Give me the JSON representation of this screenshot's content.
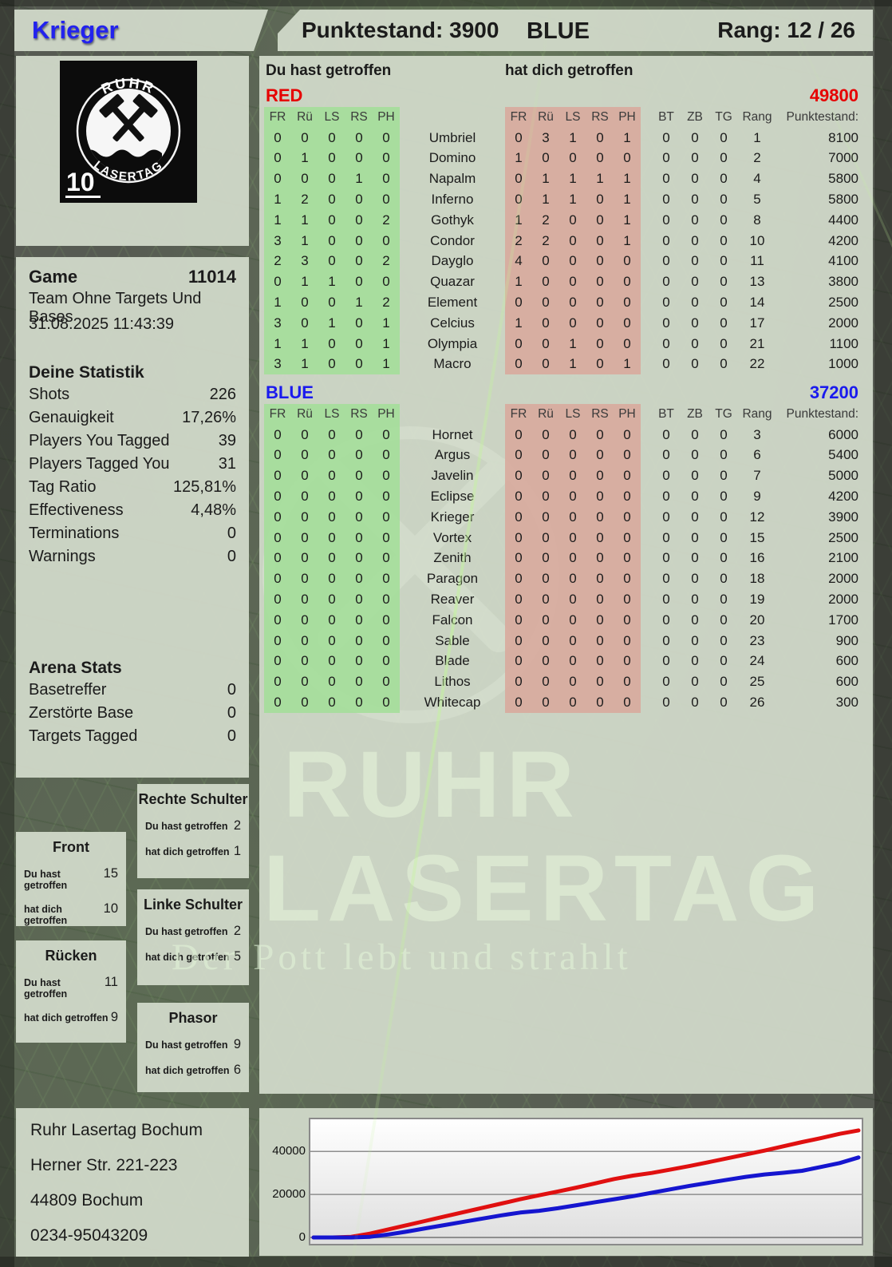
{
  "header": {
    "player_name": "Krieger",
    "score": "Punktestand: 3900",
    "team": "BLUE",
    "rank": "Rang: 12 / 26"
  },
  "logo": {
    "arc_top": "RUHR",
    "arc_bottom": "LASERTAG",
    "badge": "10"
  },
  "game": {
    "title": "Game",
    "number": "11014",
    "mode": "Team Ohne Targets Und Bases",
    "datetime": "31.08.2025 11:43:39"
  },
  "stats": {
    "title": "Deine Statistik",
    "rows": [
      {
        "label": "Shots",
        "value": "226"
      },
      {
        "label": "Genauigkeit",
        "value": "17,26%"
      },
      {
        "label": "Players You Tagged",
        "value": "39"
      },
      {
        "label": "Players Tagged You",
        "value": "31"
      },
      {
        "label": "Tag Ratio",
        "value": "125,81%"
      },
      {
        "label": "Effectiveness",
        "value": "4,48%"
      },
      {
        "label": "Terminations",
        "value": "0"
      },
      {
        "label": "Warnings",
        "value": "0"
      }
    ]
  },
  "arena": {
    "title": "Arena Stats",
    "rows": [
      {
        "label": "Basetreffer",
        "value": "0"
      },
      {
        "label": "Zerstörte Base",
        "value": "0"
      },
      {
        "label": "Targets Tagged",
        "value": "0"
      }
    ]
  },
  "zones": {
    "you_label": "Du hast getroffen",
    "them_label": "hat dich getroffen",
    "items": [
      {
        "name": "Rechte Schulter",
        "you": "2",
        "them": "1"
      },
      {
        "name": "Front",
        "you": "15",
        "them": "10"
      },
      {
        "name": "Linke Schulter",
        "you": "2",
        "them": "5"
      },
      {
        "name": "Rücken",
        "you": "11",
        "them": "9"
      },
      {
        "name": "Phasor",
        "you": "9",
        "them": "6"
      }
    ]
  },
  "address": {
    "lines": [
      "Ruhr Lasertag Bochum",
      "Herner Str. 221-223",
      "44809 Bochum",
      "0234-95043209"
    ]
  },
  "tables": {
    "you_header": "Du hast getroffen",
    "them_header": "hat dich getroffen",
    "hit_cols": [
      "FR",
      "Rü",
      "LS",
      "RS",
      "PH"
    ],
    "misc_cols": [
      "BT",
      "ZB",
      "TG",
      "Rang",
      "Punktestand:"
    ],
    "teams": [
      {
        "name": "RED",
        "color": "#e60000",
        "total": "49800",
        "rows": [
          {
            "you": [
              0,
              0,
              0,
              0,
              0
            ],
            "player": "Umbriel",
            "them": [
              0,
              3,
              1,
              0,
              1
            ],
            "bt": 0,
            "zb": 0,
            "tg": 0,
            "rang": 1,
            "punkte": 8100
          },
          {
            "you": [
              0,
              1,
              0,
              0,
              0
            ],
            "player": "Domino",
            "them": [
              1,
              0,
              0,
              0,
              0
            ],
            "bt": 0,
            "zb": 0,
            "tg": 0,
            "rang": 2,
            "punkte": 7000
          },
          {
            "you": [
              0,
              0,
              0,
              1,
              0
            ],
            "player": "Napalm",
            "them": [
              0,
              1,
              1,
              1,
              1
            ],
            "bt": 0,
            "zb": 0,
            "tg": 0,
            "rang": 4,
            "punkte": 5800
          },
          {
            "you": [
              1,
              2,
              0,
              0,
              0
            ],
            "player": "Inferno",
            "them": [
              0,
              1,
              1,
              0,
              1
            ],
            "bt": 0,
            "zb": 0,
            "tg": 0,
            "rang": 5,
            "punkte": 5800
          },
          {
            "you": [
              1,
              1,
              0,
              0,
              2
            ],
            "player": "Gothyk",
            "them": [
              1,
              2,
              0,
              0,
              1
            ],
            "bt": 0,
            "zb": 0,
            "tg": 0,
            "rang": 8,
            "punkte": 4400
          },
          {
            "you": [
              3,
              1,
              0,
              0,
              0
            ],
            "player": "Condor",
            "them": [
              2,
              2,
              0,
              0,
              1
            ],
            "bt": 0,
            "zb": 0,
            "tg": 0,
            "rang": 10,
            "punkte": 4200
          },
          {
            "you": [
              2,
              3,
              0,
              0,
              2
            ],
            "player": "Dayglo",
            "them": [
              4,
              0,
              0,
              0,
              0
            ],
            "bt": 0,
            "zb": 0,
            "tg": 0,
            "rang": 11,
            "punkte": 4100
          },
          {
            "you": [
              0,
              1,
              1,
              0,
              0
            ],
            "player": "Quazar",
            "them": [
              1,
              0,
              0,
              0,
              0
            ],
            "bt": 0,
            "zb": 0,
            "tg": 0,
            "rang": 13,
            "punkte": 3800
          },
          {
            "you": [
              1,
              0,
              0,
              1,
              2
            ],
            "player": "Element",
            "them": [
              0,
              0,
              0,
              0,
              0
            ],
            "bt": 0,
            "zb": 0,
            "tg": 0,
            "rang": 14,
            "punkte": 2500
          },
          {
            "you": [
              3,
              0,
              1,
              0,
              1
            ],
            "player": "Celcius",
            "them": [
              1,
              0,
              0,
              0,
              0
            ],
            "bt": 0,
            "zb": 0,
            "tg": 0,
            "rang": 17,
            "punkte": 2000
          },
          {
            "you": [
              1,
              1,
              0,
              0,
              1
            ],
            "player": "Olympia",
            "them": [
              0,
              0,
              1,
              0,
              0
            ],
            "bt": 0,
            "zb": 0,
            "tg": 0,
            "rang": 21,
            "punkte": 1100
          },
          {
            "you": [
              3,
              1,
              0,
              0,
              1
            ],
            "player": "Macro",
            "them": [
              0,
              0,
              1,
              0,
              1
            ],
            "bt": 0,
            "zb": 0,
            "tg": 0,
            "rang": 22,
            "punkte": 1000
          }
        ]
      },
      {
        "name": "BLUE",
        "color": "#1a1aee",
        "total": "37200",
        "rows": [
          {
            "you": [
              0,
              0,
              0,
              0,
              0
            ],
            "player": "Hornet",
            "them": [
              0,
              0,
              0,
              0,
              0
            ],
            "bt": 0,
            "zb": 0,
            "tg": 0,
            "rang": 3,
            "punkte": 6000
          },
          {
            "you": [
              0,
              0,
              0,
              0,
              0
            ],
            "player": "Argus",
            "them": [
              0,
              0,
              0,
              0,
              0
            ],
            "bt": 0,
            "zb": 0,
            "tg": 0,
            "rang": 6,
            "punkte": 5400
          },
          {
            "you": [
              0,
              0,
              0,
              0,
              0
            ],
            "player": "Javelin",
            "them": [
              0,
              0,
              0,
              0,
              0
            ],
            "bt": 0,
            "zb": 0,
            "tg": 0,
            "rang": 7,
            "punkte": 5000
          },
          {
            "you": [
              0,
              0,
              0,
              0,
              0
            ],
            "player": "Eclipse",
            "them": [
              0,
              0,
              0,
              0,
              0
            ],
            "bt": 0,
            "zb": 0,
            "tg": 0,
            "rang": 9,
            "punkte": 4200
          },
          {
            "you": [
              0,
              0,
              0,
              0,
              0
            ],
            "player": "Krieger",
            "them": [
              0,
              0,
              0,
              0,
              0
            ],
            "bt": 0,
            "zb": 0,
            "tg": 0,
            "rang": 12,
            "punkte": 3900
          },
          {
            "you": [
              0,
              0,
              0,
              0,
              0
            ],
            "player": "Vortex",
            "them": [
              0,
              0,
              0,
              0,
              0
            ],
            "bt": 0,
            "zb": 0,
            "tg": 0,
            "rang": 15,
            "punkte": 2500
          },
          {
            "you": [
              0,
              0,
              0,
              0,
              0
            ],
            "player": "Zenith",
            "them": [
              0,
              0,
              0,
              0,
              0
            ],
            "bt": 0,
            "zb": 0,
            "tg": 0,
            "rang": 16,
            "punkte": 2100
          },
          {
            "you": [
              0,
              0,
              0,
              0,
              0
            ],
            "player": "Paragon",
            "them": [
              0,
              0,
              0,
              0,
              0
            ],
            "bt": 0,
            "zb": 0,
            "tg": 0,
            "rang": 18,
            "punkte": 2000
          },
          {
            "you": [
              0,
              0,
              0,
              0,
              0
            ],
            "player": "Reaver",
            "them": [
              0,
              0,
              0,
              0,
              0
            ],
            "bt": 0,
            "zb": 0,
            "tg": 0,
            "rang": 19,
            "punkte": 2000
          },
          {
            "you": [
              0,
              0,
              0,
              0,
              0
            ],
            "player": "Falcon",
            "them": [
              0,
              0,
              0,
              0,
              0
            ],
            "bt": 0,
            "zb": 0,
            "tg": 0,
            "rang": 20,
            "punkte": 1700
          },
          {
            "you": [
              0,
              0,
              0,
              0,
              0
            ],
            "player": "Sable",
            "them": [
              0,
              0,
              0,
              0,
              0
            ],
            "bt": 0,
            "zb": 0,
            "tg": 0,
            "rang": 23,
            "punkte": 900
          },
          {
            "you": [
              0,
              0,
              0,
              0,
              0
            ],
            "player": "Blade",
            "them": [
              0,
              0,
              0,
              0,
              0
            ],
            "bt": 0,
            "zb": 0,
            "tg": 0,
            "rang": 24,
            "punkte": 600
          },
          {
            "you": [
              0,
              0,
              0,
              0,
              0
            ],
            "player": "Lithos",
            "them": [
              0,
              0,
              0,
              0,
              0
            ],
            "bt": 0,
            "zb": 0,
            "tg": 0,
            "rang": 25,
            "punkte": 600
          },
          {
            "you": [
              0,
              0,
              0,
              0,
              0
            ],
            "player": "Whitecap",
            "them": [
              0,
              0,
              0,
              0,
              0
            ],
            "bt": 0,
            "zb": 0,
            "tg": 0,
            "rang": 26,
            "punkte": 300
          }
        ]
      }
    ]
  },
  "watermark": {
    "line1": "RUHR",
    "line2": "LASERTAG",
    "slogan": "Der Pott lebt und strahlt"
  },
  "chart_data": {
    "type": "line",
    "title": "",
    "xlabel": "",
    "ylabel": "",
    "yticks": [
      0,
      20000,
      40000
    ],
    "ylim": [
      0,
      52000
    ],
    "grid": true,
    "legend_position": "none",
    "series": [
      {
        "name": "RED",
        "color": "#e01010",
        "values": [
          0,
          0,
          300,
          1800,
          3800,
          5800,
          7800,
          9800,
          11800,
          13800,
          15800,
          17800,
          19600,
          21400,
          23200,
          25200,
          27200,
          28800,
          30000,
          31600,
          33200,
          35000,
          36800,
          38600,
          40400,
          42400,
          44400,
          46200,
          48200,
          49800
        ]
      },
      {
        "name": "BLUE",
        "color": "#1515cf",
        "values": [
          0,
          0,
          0,
          300,
          1400,
          2800,
          4300,
          5800,
          7300,
          8800,
          10300,
          11600,
          12400,
          13600,
          15000,
          16400,
          17800,
          19200,
          20800,
          22400,
          24000,
          25400,
          26800,
          28200,
          29300,
          30100,
          31000,
          32800,
          34600,
          37200
        ]
      }
    ]
  }
}
